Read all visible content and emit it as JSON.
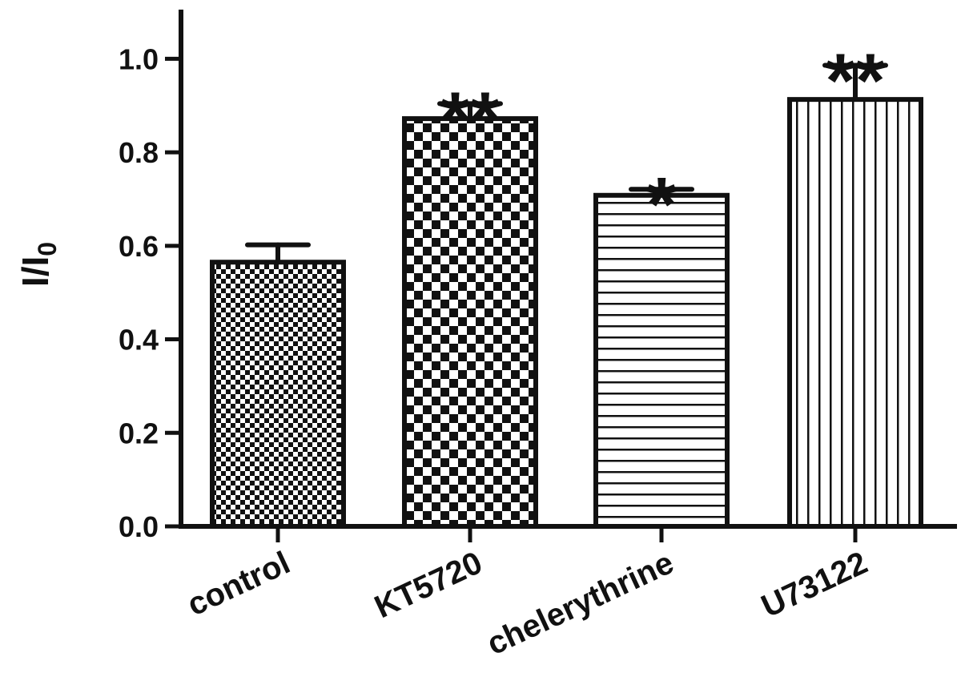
{
  "chart_data": {
    "type": "bar",
    "title": "",
    "xlabel": "",
    "ylabel": "I/I",
    "ylabel_subscript": "0",
    "ylim": [
      0,
      1.1
    ],
    "yticks": [
      "0.0",
      "0.2",
      "0.4",
      "0.6",
      "0.8",
      "1.0"
    ],
    "ytick_values": [
      0,
      0.2,
      0.4,
      0.6,
      0.8,
      1.0
    ],
    "categories": [
      "control",
      "KT5720",
      "chelerythrine",
      "U73122"
    ],
    "values": [
      0.565,
      0.872,
      0.708,
      0.913
    ],
    "errors": [
      0.037,
      0.032,
      0.013,
      0.073
    ],
    "significance": [
      "",
      "**",
      "*",
      "**"
    ],
    "patterns": [
      "fine-checker",
      "coarse-checker",
      "horizontal-lines",
      "vertical-lines"
    ],
    "colors": {
      "ink": "#111111",
      "background": "#ffffff"
    },
    "grid": false,
    "legend": "none"
  }
}
